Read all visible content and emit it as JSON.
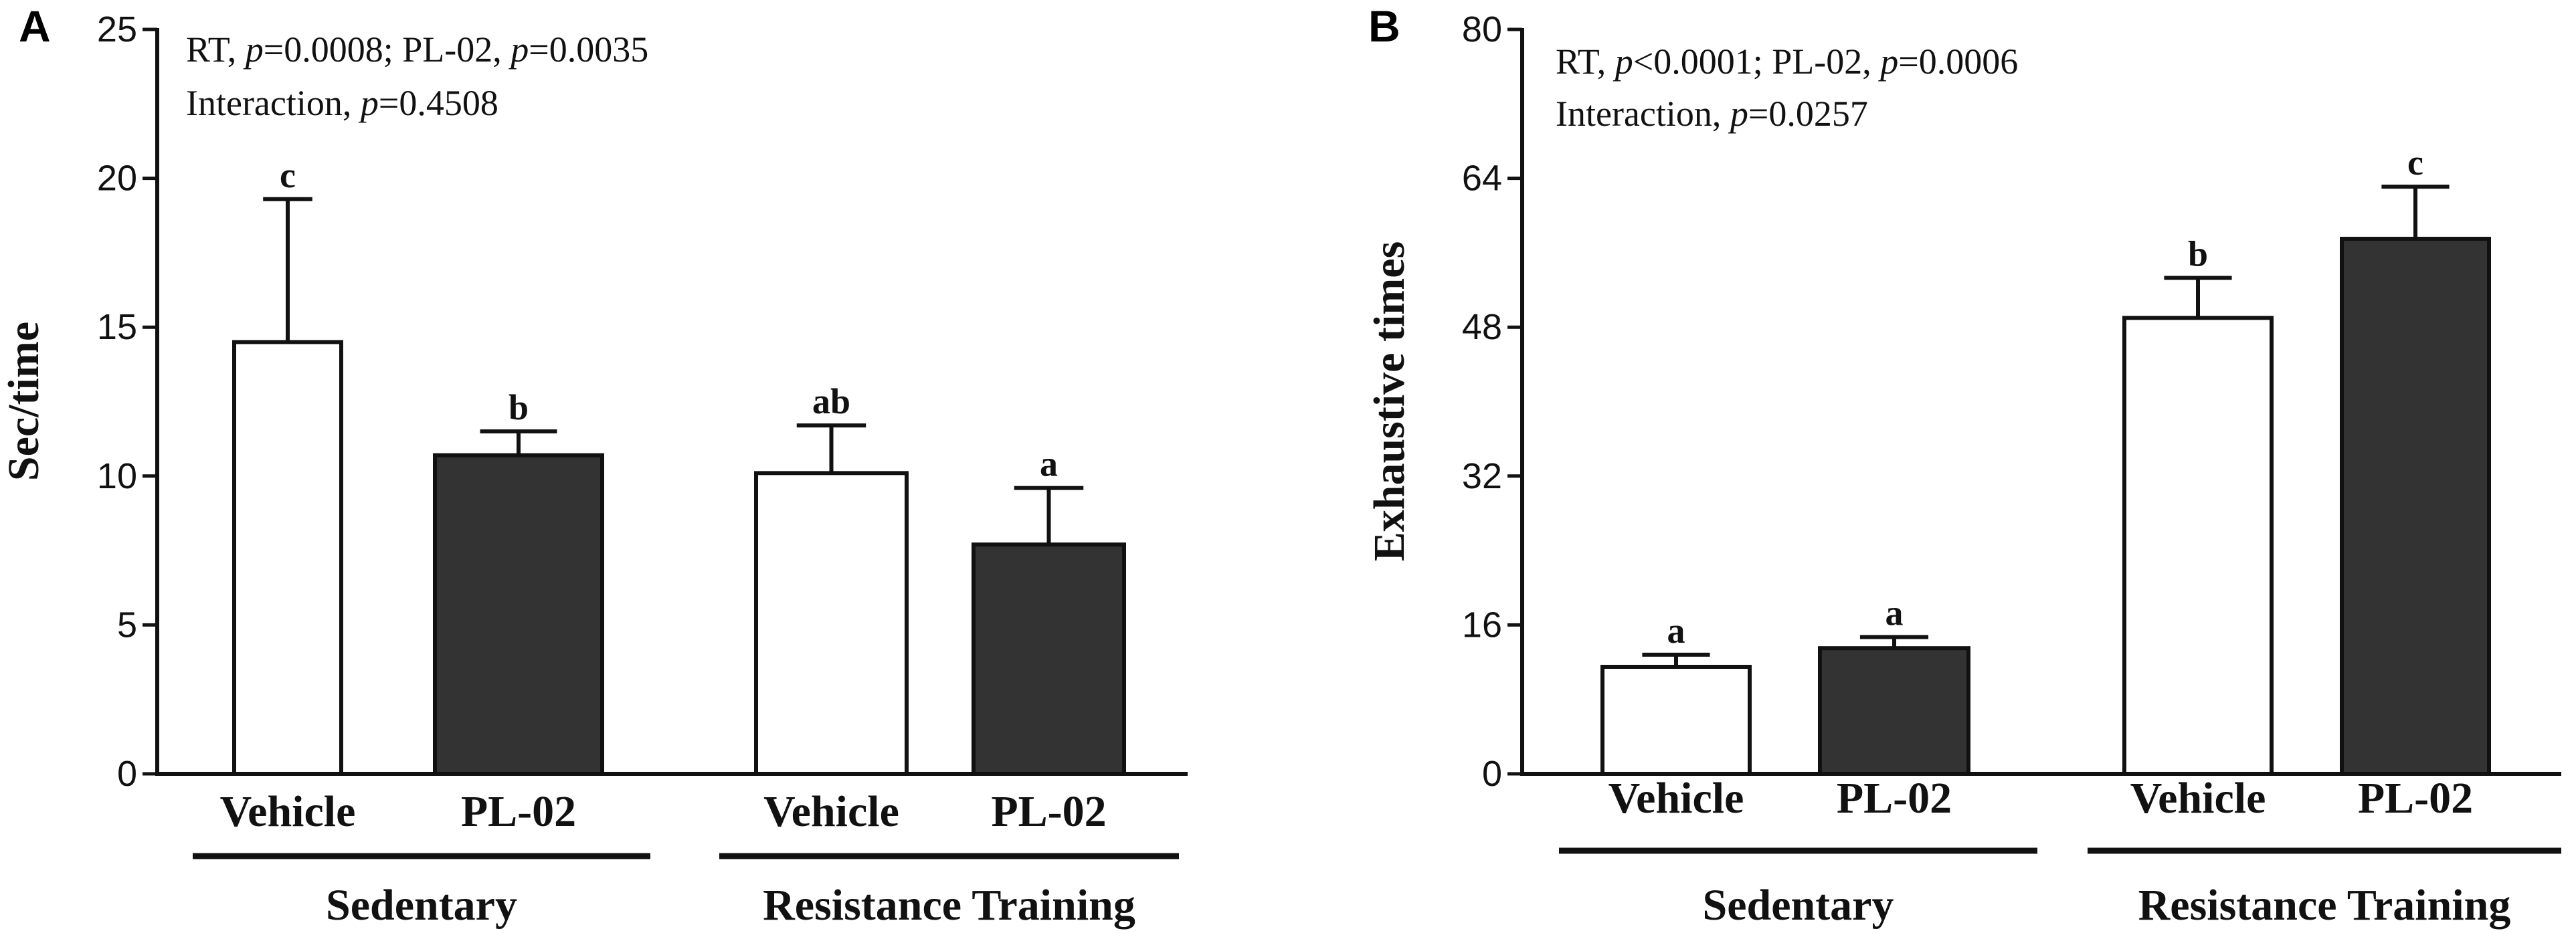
{
  "chart_data": [
    {
      "panel_label": "A",
      "type": "bar",
      "ylabel": "Sec/time",
      "ylim": [
        0,
        25
      ],
      "yticks": [
        "0",
        "5",
        "10",
        "15",
        "20",
        "25"
      ],
      "annotations": {
        "line1": [
          "RT, ",
          "p",
          "=0.0008; PL-02, ",
          "p",
          "=0.0035"
        ],
        "line2": [
          "Interaction, ",
          "p",
          "=0.4508"
        ]
      },
      "groups": [
        {
          "label": "Sedentary",
          "bars": [
            {
              "category": "Vehicle",
              "value": 14.5,
              "error": 4.8,
              "fill": "#ffffff",
              "sig": "c"
            },
            {
              "category": "PL-02",
              "value": 10.7,
              "error": 0.8,
              "fill": "#333333",
              "sig": "b"
            }
          ]
        },
        {
          "label": "Resistance Training",
          "bars": [
            {
              "category": "Vehicle",
              "value": 10.1,
              "error": 1.6,
              "fill": "#ffffff",
              "sig": "ab"
            },
            {
              "category": "PL-02",
              "value": 7.7,
              "error": 1.9,
              "fill": "#333333",
              "sig": "a"
            }
          ]
        }
      ]
    },
    {
      "panel_label": "B",
      "type": "bar",
      "ylabel": "Exhaustive times",
      "ylim": [
        0,
        80
      ],
      "yticks": [
        "0",
        "16",
        "32",
        "48",
        "64",
        "80"
      ],
      "annotations": {
        "line1": [
          "RT, ",
          "p",
          "<0.0001; PL-02, ",
          "p",
          "=0.0006"
        ],
        "line2": [
          "Interaction, ",
          "p",
          "=0.0257"
        ]
      },
      "groups": [
        {
          "label": "Sedentary",
          "bars": [
            {
              "category": "Vehicle",
              "value": 11.5,
              "error": 1.3,
              "fill": "#ffffff",
              "sig": "a"
            },
            {
              "category": "PL-02",
              "value": 13.5,
              "error": 1.2,
              "fill": "#333333",
              "sig": "a"
            }
          ]
        },
        {
          "label": "Resistance Training",
          "bars": [
            {
              "category": "Vehicle",
              "value": 49.0,
              "error": 4.3,
              "fill": "#ffffff",
              "sig": "b"
            },
            {
              "category": "PL-02",
              "value": 57.5,
              "error": 5.6,
              "fill": "#333333",
              "sig": "c"
            }
          ]
        }
      ]
    }
  ]
}
